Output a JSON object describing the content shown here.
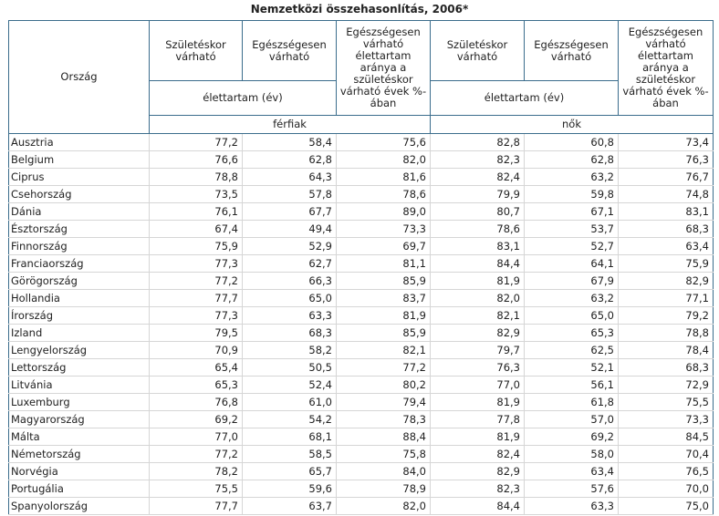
{
  "title": "Nemzetközi összehasonlítás, 2006*",
  "table": {
    "header": {
      "country": "Ország",
      "birth": "Születéskor várható",
      "healthy": "Egészségesen várható",
      "ratio": "Egészségesen várható élettartam aránya a születéskor várható évek %-ában",
      "lifespan": "élettartam (év)",
      "men": "férfiak",
      "women": "nők"
    },
    "rows": [
      [
        "Ausztria",
        "77,2",
        "58,4",
        "75,6",
        "82,8",
        "60,8",
        "73,4"
      ],
      [
        "Belgium",
        "76,6",
        "62,8",
        "82,0",
        "82,3",
        "62,8",
        "76,3"
      ],
      [
        "Ciprus",
        "78,8",
        "64,3",
        "81,6",
        "82,4",
        "63,2",
        "76,7"
      ],
      [
        "Csehország",
        "73,5",
        "57,8",
        "78,6",
        "79,9",
        "59,8",
        "74,8"
      ],
      [
        "Dánia",
        "76,1",
        "67,7",
        "89,0",
        "80,7",
        "67,1",
        "83,1"
      ],
      [
        "Észtország",
        "67,4",
        "49,4",
        "73,3",
        "78,6",
        "53,7",
        "68,3"
      ],
      [
        "Finnország",
        "75,9",
        "52,9",
        "69,7",
        "83,1",
        "52,7",
        "63,4"
      ],
      [
        "Franciaország",
        "77,3",
        "62,7",
        "81,1",
        "84,4",
        "64,1",
        "75,9"
      ],
      [
        "Görögország",
        "77,2",
        "66,3",
        "85,9",
        "81,9",
        "67,9",
        "82,9"
      ],
      [
        "Hollandia",
        "77,7",
        "65,0",
        "83,7",
        "82,0",
        "63,2",
        "77,1"
      ],
      [
        "Írország",
        "77,3",
        "63,3",
        "81,9",
        "82,1",
        "65,0",
        "79,2"
      ],
      [
        "Izland",
        "79,5",
        "68,3",
        "85,9",
        "82,9",
        "65,3",
        "78,8"
      ],
      [
        "Lengyelország",
        "70,9",
        "58,2",
        "82,1",
        "79,7",
        "62,5",
        "78,4"
      ],
      [
        "Lettország",
        "65,4",
        "50,5",
        "77,2",
        "76,3",
        "52,1",
        "68,3"
      ],
      [
        "Litvánia",
        "65,3",
        "52,4",
        "80,2",
        "77,0",
        "56,1",
        "72,9"
      ],
      [
        "Luxemburg",
        "76,8",
        "61,0",
        "79,4",
        "81,9",
        "61,8",
        "75,5"
      ],
      [
        "Magyarország",
        "69,2",
        "54,2",
        "78,3",
        "77,8",
        "57,0",
        "73,3"
      ],
      [
        "Málta",
        "77,0",
        "68,1",
        "88,4",
        "81,9",
        "69,2",
        "84,5"
      ],
      [
        "Németország",
        "77,2",
        "58,5",
        "75,8",
        "82,4",
        "58,0",
        "70,4"
      ],
      [
        "Norvégia",
        "78,2",
        "65,7",
        "84,0",
        "82,9",
        "63,4",
        "76,5"
      ],
      [
        "Portugália",
        "75,5",
        "59,6",
        "78,9",
        "82,3",
        "57,6",
        "70,0"
      ],
      [
        "Spanyolország",
        "77,7",
        "63,7",
        "82,0",
        "84,4",
        "63,3",
        "75,0"
      ]
    ]
  }
}
